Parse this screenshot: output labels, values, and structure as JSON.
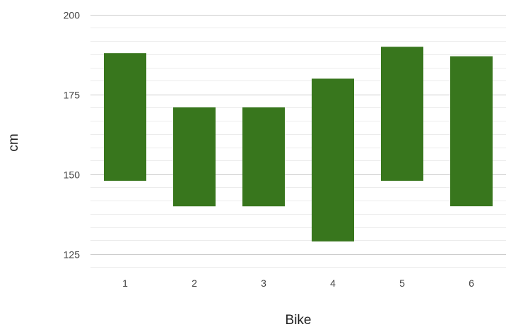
{
  "chart_data": {
    "type": "bar",
    "subtype": "floating-range",
    "title": "",
    "xlabel": "Bike",
    "ylabel": "cm",
    "categories": [
      "1",
      "2",
      "3",
      "4",
      "5",
      "6"
    ],
    "series": [
      {
        "ranges": [
          [
            148,
            188
          ],
          [
            140,
            171
          ],
          [
            140,
            171
          ],
          [
            129,
            180
          ],
          [
            148,
            190
          ],
          [
            140,
            187
          ]
        ],
        "color": "#38761d"
      }
    ],
    "ylim": [
      121,
      200
    ],
    "yticks": [
      125,
      150,
      175,
      200
    ],
    "ytick_labels": [
      "125",
      "150",
      "175",
      "200"
    ],
    "minor_grid_step": 4.1667,
    "grid": true,
    "legend": "none"
  }
}
